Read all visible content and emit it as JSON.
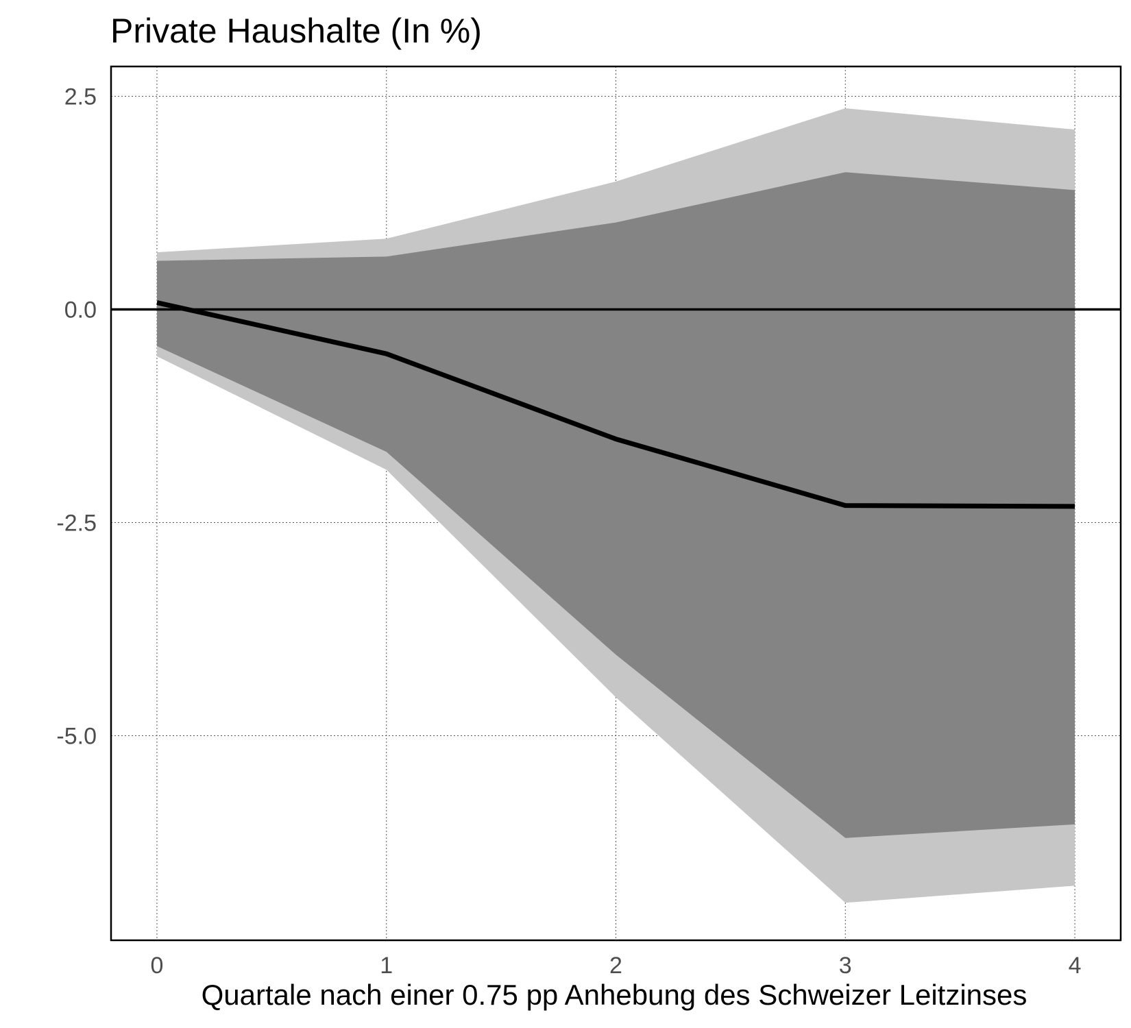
{
  "chart_data": {
    "type": "area",
    "title": "Private Haushalte (In %)",
    "xlabel": "Quartale nach einer 0.75 pp Anhebung des Schweizer Leitzinses",
    "ylabel": "",
    "x": [
      0,
      1,
      2,
      3,
      4
    ],
    "xlim": [
      -0.2,
      4.2
    ],
    "ylim": [
      -7.4,
      2.85
    ],
    "xticks": [
      0,
      1,
      2,
      3,
      4
    ],
    "xtick_labels": [
      "0",
      "1",
      "2",
      "3",
      "4"
    ],
    "yticks": [
      2.5,
      0.0,
      -2.5,
      -5.0
    ],
    "ytick_labels": [
      "2.5",
      "0.0",
      "-2.5",
      "-5.0"
    ],
    "grid": true,
    "series": [
      {
        "role": "outer-band",
        "color": "#c6c6c6",
        "upper": [
          0.67,
          0.83,
          1.5,
          2.36,
          2.11
        ],
        "lower": [
          -0.55,
          -1.88,
          -4.55,
          -6.96,
          -6.76
        ]
      },
      {
        "role": "inner-band",
        "color": "#848484",
        "upper": [
          0.57,
          0.62,
          1.02,
          1.61,
          1.4
        ],
        "lower": [
          -0.43,
          -1.67,
          -4.05,
          -6.2,
          -6.04
        ]
      },
      {
        "role": "median",
        "color": "#000000",
        "values": [
          0.08,
          -0.52,
          -1.52,
          -2.3,
          -2.31
        ]
      }
    ],
    "reference_line": {
      "y": 0.0,
      "color": "#000000"
    }
  }
}
